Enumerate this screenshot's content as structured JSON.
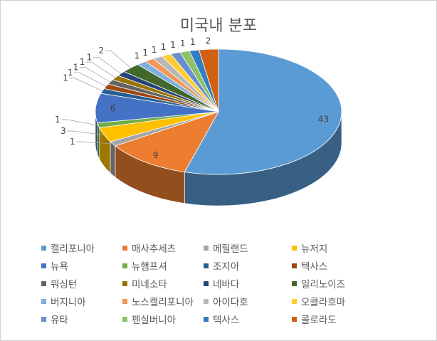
{
  "chart_data": {
    "type": "pie",
    "style": "3d",
    "title": "미국내 분포",
    "series": [
      {
        "values": [
          43,
          9,
          1,
          3,
          1,
          6,
          1,
          1,
          1,
          1,
          1,
          2,
          1,
          1,
          1,
          1,
          1,
          1,
          1,
          2
        ]
      }
    ],
    "categories": [
      "캘리포니아",
      "매사추세츠",
      "메릴랜드",
      "뉴저지",
      "뉴햄프셔",
      "뉴욕",
      "조지아",
      "텍사스",
      "워싱턴",
      "미네소타",
      "네바다",
      "일리노이즈",
      "버지니아",
      "노스캘리포니아",
      "아이다호",
      "오클라호마",
      "유타",
      "펜실버니아",
      "텍사스",
      "콜로라도"
    ],
    "colors": [
      "#5b9bd5",
      "#ed7d31",
      "#a5a5a5",
      "#ffc000",
      "#70ad47",
      "#4472c4",
      "#255e91",
      "#9e480e",
      "#636363",
      "#997300",
      "#264478",
      "#43682b",
      "#7cafdd",
      "#f1975a",
      "#b7b7b7",
      "#ffcd33",
      "#698ed0",
      "#8cc168",
      "#327dc2",
      "#d26012"
    ],
    "legend": {
      "position": "bottom",
      "order": [
        "캘리포니아",
        "매사추세츠",
        "메릴랜드",
        "뉴저지",
        "뉴욕",
        "뉴햄프셔",
        "조지아",
        "텍사스",
        "워싱턴",
        "미네소타",
        "네바다",
        "일리노이즈",
        "버지니아",
        "노스캘리포니아",
        "아이다호",
        "오클라호마",
        "유타",
        "펜실버니아",
        "텍사스",
        "콜로라도"
      ]
    }
  }
}
